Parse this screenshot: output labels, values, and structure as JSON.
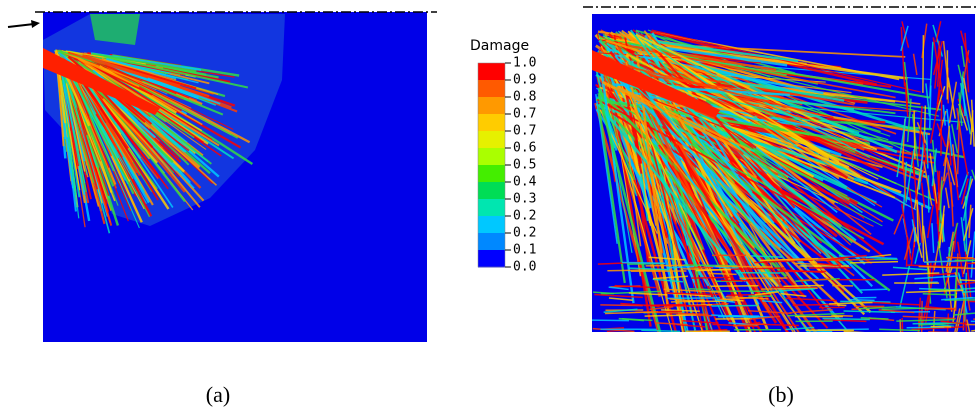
{
  "legend": {
    "title": "Damage",
    "labels": [
      "1.0",
      "0.9",
      "0.8",
      "0.7",
      "0.7",
      "0.6",
      "0.5",
      "0.4",
      "0.3",
      "0.2",
      "0.2",
      "0.1",
      "0.0"
    ]
  },
  "captions": [
    "(a)",
    "(b)"
  ]
}
